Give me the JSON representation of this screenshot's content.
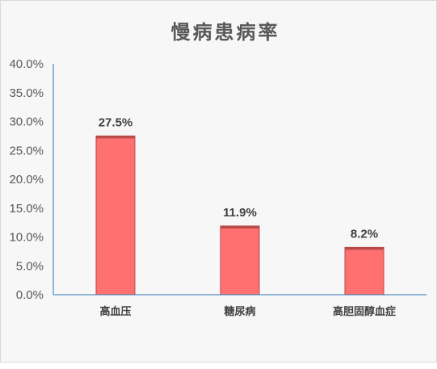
{
  "chart_data": {
    "type": "bar",
    "title": "慢病患病率",
    "categories": [
      "高血压",
      "糖尿病",
      "高胆固醇血症"
    ],
    "values": [
      27.5,
      11.9,
      8.2
    ],
    "value_labels": [
      "27.5%",
      "11.9%",
      "8.2%"
    ],
    "ylim": [
      0,
      40
    ],
    "yticks": [
      "0.0%",
      "5.0%",
      "10.0%",
      "15.0%",
      "20.0%",
      "25.0%",
      "30.0%",
      "35.0%",
      "40.0%"
    ],
    "xlabel": "",
    "ylabel": "",
    "grid": false,
    "legend": "none",
    "colors": {
      "bar": "#ff7070",
      "bar_edge": "#b84a4a",
      "axis": "#2e75b6",
      "title": "#595959"
    }
  }
}
